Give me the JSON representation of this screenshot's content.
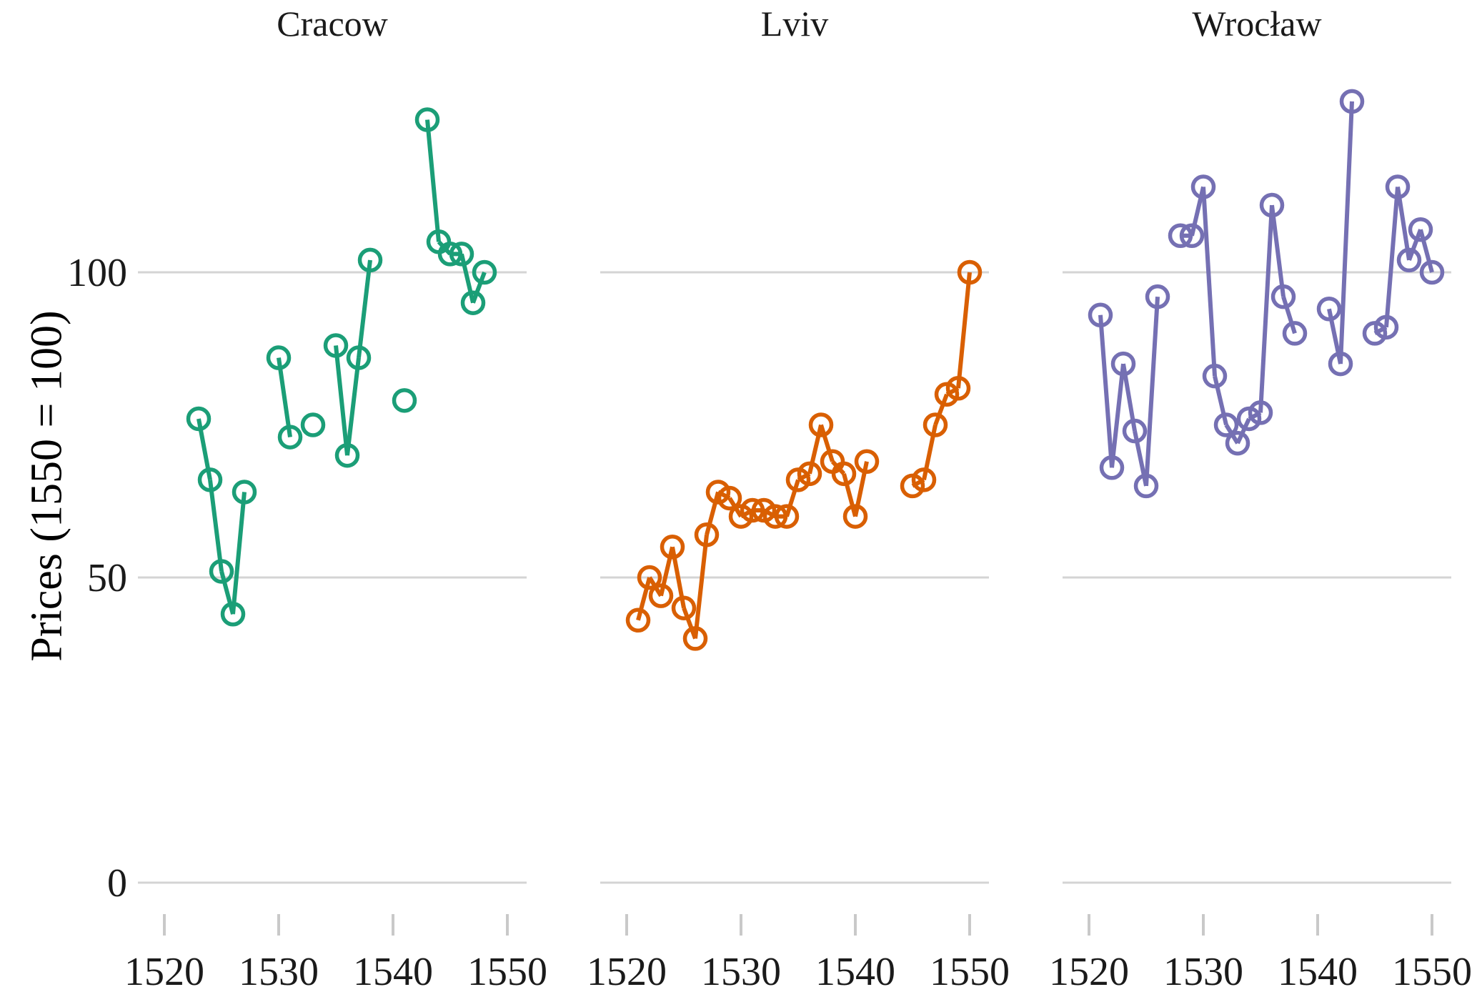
{
  "chart_data": {
    "type": "line",
    "title": "",
    "ylabel": "Prices (1550 = 100)",
    "xlabel": "",
    "y_ticks": [
      0,
      50,
      100
    ],
    "x_ticks": [
      1520,
      1530,
      1540,
      1550
    ],
    "ylim": [
      0,
      140
    ],
    "xlim": [
      1518,
      1552
    ],
    "grid": "horizontal-only",
    "legend_position": "none",
    "marker": "open-circle",
    "connect_rule": "points in consecutive years are connected; missing years create gaps",
    "colors": {
      "gridline": "#d4d4d4",
      "tick_mark": "#c9c9c9",
      "text": "#1a1a1a"
    },
    "facets": [
      {
        "title": "Cracow",
        "color": "#1B9E77",
        "points": [
          {
            "year": 1523,
            "value": 76
          },
          {
            "year": 1524,
            "value": 66
          },
          {
            "year": 1525,
            "value": 51
          },
          {
            "year": 1526,
            "value": 44
          },
          {
            "year": 1527,
            "value": 64
          },
          {
            "year": 1530,
            "value": 86
          },
          {
            "year": 1531,
            "value": 73
          },
          {
            "year": 1533,
            "value": 75
          },
          {
            "year": 1535,
            "value": 88
          },
          {
            "year": 1536,
            "value": 70
          },
          {
            "year": 1537,
            "value": 86
          },
          {
            "year": 1538,
            "value": 102
          },
          {
            "year": 1541,
            "value": 79
          },
          {
            "year": 1543,
            "value": 125
          },
          {
            "year": 1544,
            "value": 105
          },
          {
            "year": 1545,
            "value": 103
          },
          {
            "year": 1546,
            "value": 103
          },
          {
            "year": 1547,
            "value": 95
          },
          {
            "year": 1548,
            "value": 100
          }
        ]
      },
      {
        "title": "Lviv",
        "color": "#D95F02",
        "points": [
          {
            "year": 1521,
            "value": 43
          },
          {
            "year": 1522,
            "value": 50
          },
          {
            "year": 1523,
            "value": 47
          },
          {
            "year": 1524,
            "value": 55
          },
          {
            "year": 1525,
            "value": 45
          },
          {
            "year": 1526,
            "value": 40
          },
          {
            "year": 1527,
            "value": 57
          },
          {
            "year": 1528,
            "value": 64
          },
          {
            "year": 1529,
            "value": 63
          },
          {
            "year": 1530,
            "value": 60
          },
          {
            "year": 1531,
            "value": 61
          },
          {
            "year": 1532,
            "value": 61
          },
          {
            "year": 1533,
            "value": 60
          },
          {
            "year": 1534,
            "value": 60
          },
          {
            "year": 1535,
            "value": 66
          },
          {
            "year": 1536,
            "value": 67
          },
          {
            "year": 1537,
            "value": 75
          },
          {
            "year": 1538,
            "value": 69
          },
          {
            "year": 1539,
            "value": 67
          },
          {
            "year": 1540,
            "value": 60
          },
          {
            "year": 1541,
            "value": 69
          },
          {
            "year": 1545,
            "value": 65
          },
          {
            "year": 1546,
            "value": 66
          },
          {
            "year": 1547,
            "value": 75
          },
          {
            "year": 1548,
            "value": 80
          },
          {
            "year": 1549,
            "value": 81
          },
          {
            "year": 1550,
            "value": 100
          }
        ]
      },
      {
        "title": "Wrocław",
        "color": "#7570B3",
        "points": [
          {
            "year": 1521,
            "value": 93
          },
          {
            "year": 1522,
            "value": 68
          },
          {
            "year": 1523,
            "value": 85
          },
          {
            "year": 1524,
            "value": 74
          },
          {
            "year": 1525,
            "value": 65
          },
          {
            "year": 1526,
            "value": 96
          },
          {
            "year": 1528,
            "value": 106
          },
          {
            "year": 1529,
            "value": 106
          },
          {
            "year": 1530,
            "value": 114
          },
          {
            "year": 1531,
            "value": 83
          },
          {
            "year": 1532,
            "value": 75
          },
          {
            "year": 1533,
            "value": 72
          },
          {
            "year": 1534,
            "value": 76
          },
          {
            "year": 1535,
            "value": 77
          },
          {
            "year": 1536,
            "value": 111
          },
          {
            "year": 1537,
            "value": 96
          },
          {
            "year": 1538,
            "value": 90
          },
          {
            "year": 1541,
            "value": 94
          },
          {
            "year": 1542,
            "value": 85
          },
          {
            "year": 1543,
            "value": 128
          },
          {
            "year": 1545,
            "value": 90
          },
          {
            "year": 1546,
            "value": 91
          },
          {
            "year": 1547,
            "value": 114
          },
          {
            "year": 1548,
            "value": 102
          },
          {
            "year": 1549,
            "value": 107
          },
          {
            "year": 1550,
            "value": 100
          }
        ]
      }
    ]
  }
}
